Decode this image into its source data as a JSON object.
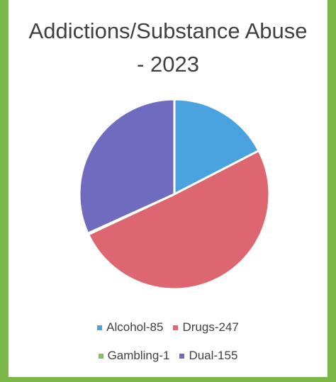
{
  "chart_data": {
    "type": "pie",
    "title": "Addictions/Substance Abuse",
    "subtitle": "- 2023",
    "categories": [
      "Alcohol",
      "Drugs",
      "Gambling",
      "Dual"
    ],
    "values": [
      85,
      247,
      1,
      155
    ],
    "legend_labels": [
      "Alcohol-85",
      "Drugs-247",
      "Gambling-1",
      "Dual-155"
    ],
    "colors": [
      "#4aa3df",
      "#dd6671",
      "#82bf5f",
      "#6f6cc0"
    ],
    "legend_position": "bottom"
  }
}
